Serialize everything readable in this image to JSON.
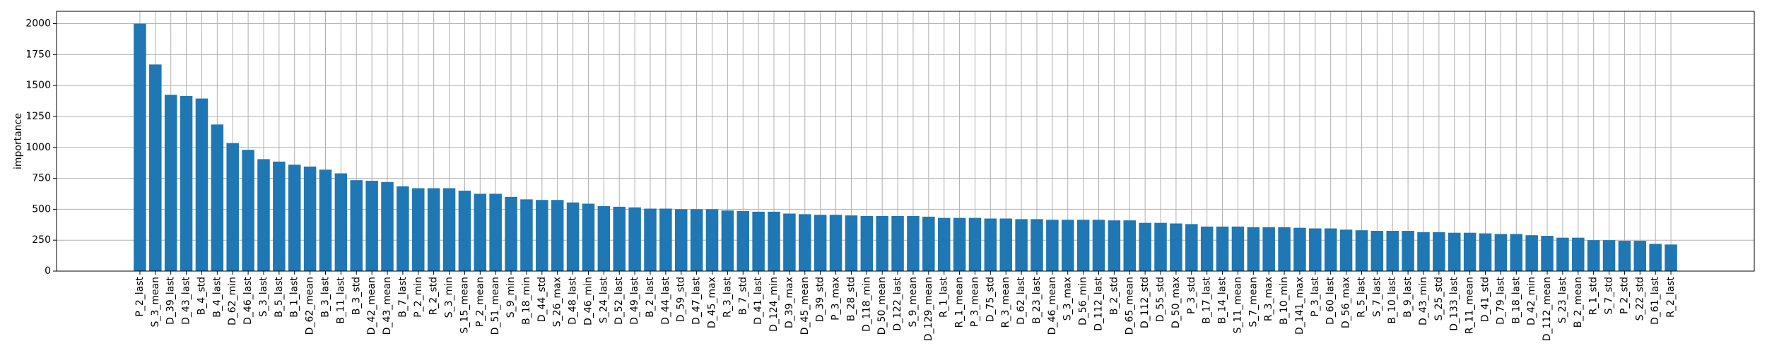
{
  "chart_data": {
    "type": "bar",
    "ylabel": "importance",
    "color": "#1f77b4",
    "grid": true,
    "ylim": [
      0,
      2100
    ],
    "yticks": [
      0,
      250,
      500,
      750,
      1000,
      1250,
      1500,
      1750,
      2000
    ],
    "categories": [
      "P_2_last",
      "S_3_mean",
      "D_39_last",
      "D_43_last",
      "B_4_std",
      "B_4_last",
      "D_62_min",
      "D_46_last",
      "S_3_last",
      "B_5_last",
      "B_1_last",
      "D_62_mean",
      "B_3_last",
      "B_11_last",
      "B_3_std",
      "D_42_mean",
      "D_43_mean",
      "B_7_last",
      "P_2_min",
      "R_2_std",
      "S_3_min",
      "S_15_mean",
      "P_2_mean",
      "D_51_mean",
      "S_9_min",
      "B_18_min",
      "D_44_std",
      "S_26_max",
      "D_48_last",
      "D_46_min",
      "S_24_last",
      "D_52_last",
      "D_49_last",
      "B_2_last",
      "D_44_last",
      "D_59_std",
      "D_47_last",
      "D_45_max",
      "R_3_last",
      "B_7_std",
      "D_41_last",
      "D_124_min",
      "D_39_max",
      "D_45_mean",
      "D_39_std",
      "P_3_max",
      "B_28_std",
      "D_118_min",
      "D_50_mean",
      "D_122_last",
      "S_9_mean",
      "D_129_mean",
      "R_1_last",
      "R_1_mean",
      "P_3_mean",
      "D_75_std",
      "R_3_mean",
      "D_62_last",
      "B_23_last",
      "D_46_mean",
      "S_3_max",
      "D_56_min",
      "D_112_last",
      "B_2_std",
      "D_65_mean",
      "D_112_std",
      "D_55_std",
      "D_50_max",
      "P_3_std",
      "B_17_last",
      "B_14_last",
      "S_11_mean",
      "S_7_mean",
      "R_3_max",
      "B_10_min",
      "D_141_max",
      "P_3_last",
      "D_60_last",
      "D_56_max",
      "R_5_last",
      "S_7_last",
      "B_10_last",
      "B_9_last",
      "D_43_min",
      "S_25_std",
      "D_133_last",
      "R_11_mean",
      "D_41_std",
      "D_79_last",
      "B_18_last",
      "D_42_min",
      "D_112_mean",
      "S_23_last",
      "B_2_mean",
      "R_1_std",
      "S_7_std",
      "P_2_std",
      "S_22_std",
      "D_61_last",
      "R_2_last"
    ],
    "values": [
      2000,
      1670,
      1425,
      1415,
      1395,
      1185,
      1035,
      980,
      905,
      885,
      860,
      845,
      820,
      790,
      735,
      730,
      720,
      685,
      670,
      670,
      670,
      650,
      625,
      625,
      600,
      580,
      575,
      575,
      555,
      545,
      525,
      520,
      515,
      505,
      505,
      500,
      500,
      500,
      490,
      485,
      480,
      480,
      465,
      460,
      455,
      455,
      450,
      445,
      445,
      445,
      445,
      440,
      430,
      430,
      430,
      425,
      425,
      420,
      420,
      415,
      415,
      415,
      415,
      410,
      410,
      390,
      390,
      385,
      380,
      360,
      360,
      360,
      355,
      355,
      355,
      350,
      345,
      345,
      335,
      330,
      325,
      325,
      325,
      315,
      315,
      310,
      310,
      305,
      300,
      300,
      290,
      285,
      270,
      270,
      250,
      250,
      245,
      245,
      220,
      215
    ]
  }
}
